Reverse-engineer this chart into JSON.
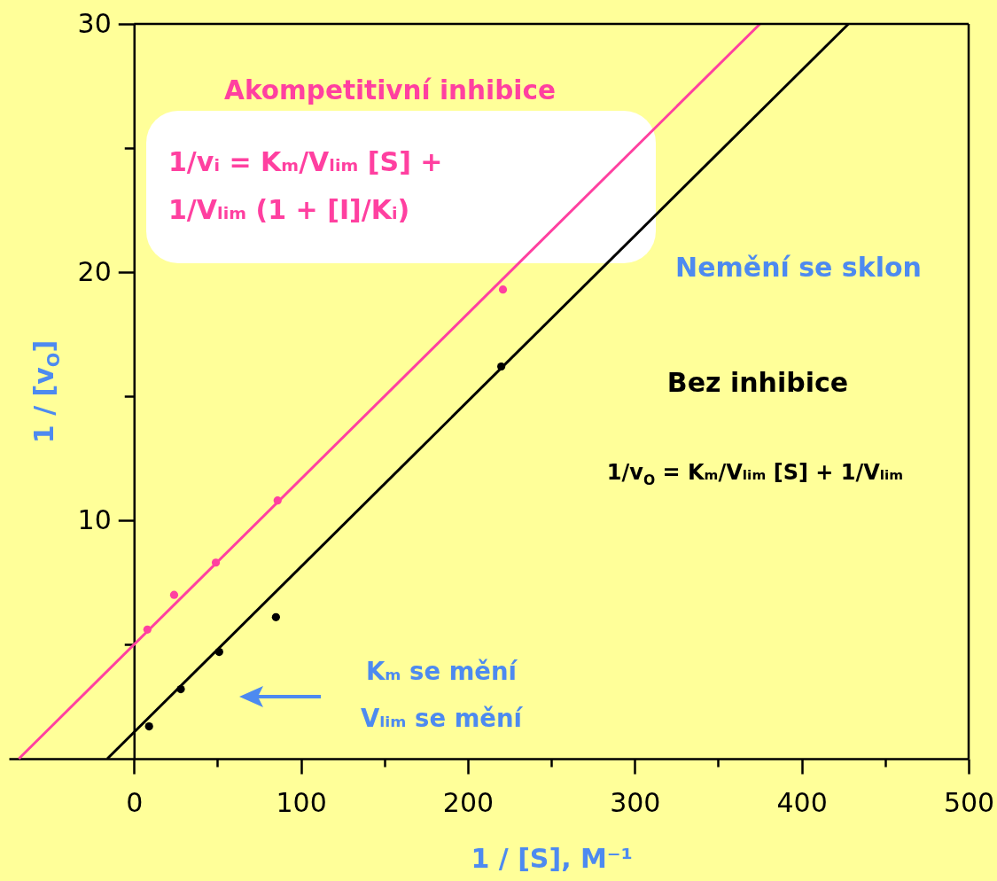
{
  "chart_data": {
    "type": "scatter",
    "xlabel": "1 / [S], M⁻¹",
    "ylabel": "1 / [v$_{O}$]",
    "annotations": [
      "Akompetitivní inhibice",
      "1/vᵢ = Kₘ/Vₗᵢₘ [S] + 1/Vₗᵢₘ (1 + [I]/Kᵢ)",
      "Nemění se sklon",
      "Bez inhibice",
      "1/v$_{O}$ = Kₘ/Vₗᵢₘ [S] + 1/Vₗᵢₘ",
      "Kₘ se mění",
      "Vₗᵢₘ se mění"
    ],
    "xlim": [
      -75,
      500
    ],
    "xticks": [
      0,
      {
        "value": 50,
        "label": null
      },
      100,
      {
        "value": 150,
        "label": null
      },
      200,
      {
        "value": 250,
        "label": null
      },
      300,
      {
        "value": 350,
        "label": null
      },
      400,
      {
        "value": 450,
        "label": null
      },
      500
    ],
    "ylim": [
      0.4,
      30
    ],
    "yticks": [
      {
        "value": 5,
        "label": null
      },
      10,
      {
        "value": 15,
        "label": null
      },
      20,
      {
        "value": 25,
        "label": null
      },
      30
    ],
    "series": [
      {
        "color": "#ff40a0",
        "marker": "circle",
        "x": [
          8,
          24,
          49,
          86,
          221
        ],
        "values": [
          5.6,
          7.0,
          8.3,
          10.8,
          19.3
        ]
      },
      {
        "type": "line",
        "color": "#ff40a0",
        "x": [
          -69,
          375
        ],
        "values": [
          0.4,
          30
        ]
      },
      {
        "color": "#000000",
        "marker": "circle",
        "x": [
          9,
          28,
          51,
          85,
          220
        ],
        "values": [
          1.7,
          3.2,
          4.7,
          6.1,
          16.2
        ]
      },
      {
        "type": "line",
        "color": "#000000",
        "x": [
          -16,
          428
        ],
        "values": [
          0.4,
          30
        ]
      }
    ]
  }
}
